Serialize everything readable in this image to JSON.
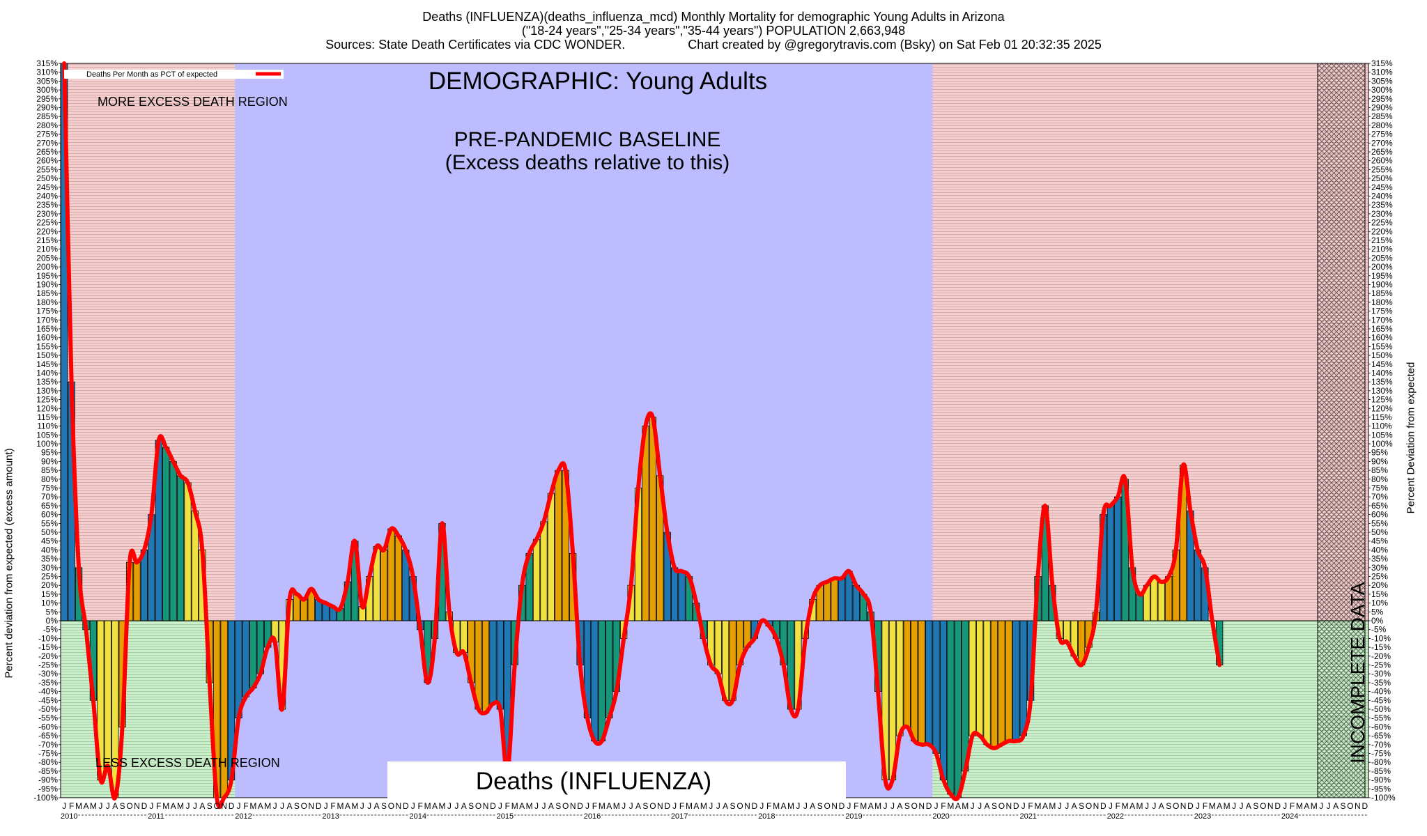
{
  "header": {
    "line1": "Deaths (INFLUENZA)(deaths_influenza_mcd) Monthly Mortality for demographic Young Adults in Arizona",
    "line2": "(\"18-24 years\",\"25-34 years\",\"35-44 years\") POPULATION 2,663,948",
    "line3_sources": "Sources: State Death Certificates via CDC WONDER.",
    "line3_credit": "Chart created by @gregorytravis.com (Bsky) on Sat Feb 01 20:32:35 2025"
  },
  "annotations": {
    "demographic": "DEMOGRAPHIC: Young Adults",
    "baseline_line1": "PRE-PANDEMIC BASELINE",
    "baseline_line2": "(Excess deaths relative to this)",
    "more_region": "MORE EXCESS DEATH REGION",
    "less_region": "LESS EXCESS DEATH REGION",
    "cause_box": "Deaths (INFLUENZA)",
    "incomplete": "INCOMPLETE DATA"
  },
  "colors": {
    "line": "#ff0000",
    "bar_winter": "#1f77b4",
    "bar_spring": "#17977a",
    "bar_summer": "#f0e040",
    "bar_autumn": "#e69f00",
    "baseline_fill": "#bcbcff",
    "excess_fill": "#f0c8c8",
    "deficit_fill": "#c8ecc8"
  },
  "chart_data": {
    "type": "bar",
    "title": "Deaths (INFLUENZA)(deaths_influenza_mcd) Monthly Mortality for demographic Young Adults in Arizona",
    "ylabel": "Percent deviation from expected (excess amount)",
    "ylabel_right": "Percent Deviation from expected",
    "legend": "Deaths Per Month as PCT of expected",
    "legend_position": "top-left",
    "ylim": [
      -100,
      315
    ],
    "ytick_step": 5,
    "y_unit": "%",
    "grid": true,
    "start": "2010-01",
    "month_letters": [
      "J",
      "F",
      "M",
      "A",
      "M",
      "J",
      "J",
      "A",
      "S",
      "O",
      "N",
      "D"
    ],
    "years": [
      "2010",
      "2011",
      "2012",
      "2013",
      "2014",
      "2015",
      "2016",
      "2017",
      "2018",
      "2019",
      "2020",
      "2021",
      "2022",
      "2023",
      "2024"
    ],
    "baseline_period": [
      "2012-01",
      "2019-12"
    ],
    "incomplete_from": "2024-06",
    "series": [
      {
        "name": "Deaths Per Month as PCT of expected",
        "values": [
          315,
          135,
          30,
          -5,
          -45,
          -90,
          -82,
          -100,
          -60,
          33,
          33,
          40,
          60,
          102,
          98,
          90,
          82,
          78,
          62,
          40,
          -35,
          -100,
          -100,
          -90,
          -55,
          -43,
          -38,
          -30,
          -15,
          -12,
          -50,
          12,
          15,
          12,
          18,
          12,
          10,
          8,
          7,
          22,
          45,
          8,
          25,
          42,
          40,
          52,
          48,
          40,
          25,
          -5,
          -35,
          -10,
          55,
          5,
          -18,
          -18,
          -35,
          -50,
          -52,
          -47,
          -50,
          -85,
          -25,
          20,
          38,
          46,
          56,
          72,
          85,
          85,
          38,
          -25,
          -55,
          -68,
          -68,
          -55,
          -40,
          -10,
          20,
          75,
          110,
          115,
          82,
          50,
          30,
          28,
          25,
          10,
          -10,
          -25,
          -30,
          -45,
          -45,
          -25,
          -15,
          -10,
          0,
          -3,
          -10,
          -25,
          -50,
          -50,
          -10,
          12,
          20,
          22,
          24,
          24,
          28,
          20,
          15,
          5,
          -40,
          -90,
          -90,
          -65,
          -60,
          -68,
          -70,
          -70,
          -75,
          -90,
          -98,
          -100,
          -85,
          -65,
          -65,
          -70,
          -72,
          -70,
          -68,
          -68,
          -65,
          -45,
          25,
          65,
          20,
          -10,
          -12,
          -20,
          -25,
          -15,
          5,
          60,
          65,
          70,
          80,
          30,
          15,
          20,
          25,
          22,
          25,
          40,
          88,
          62,
          40,
          30,
          0,
          -25
        ]
      }
    ]
  }
}
